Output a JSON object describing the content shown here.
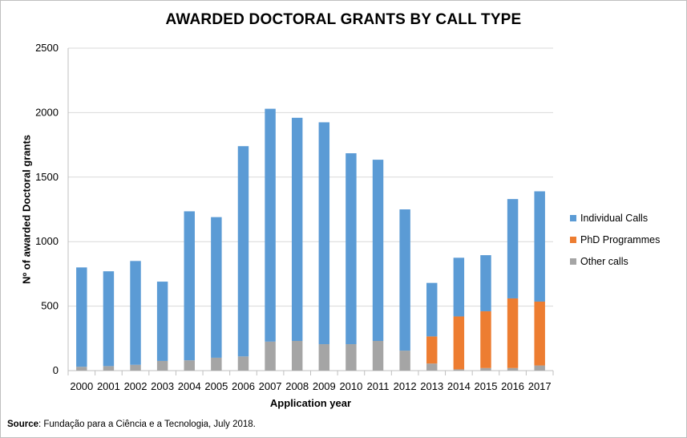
{
  "title": "AWARDED DOCTORAL GRANTS BY CALL TYPE",
  "source": {
    "label": "Source",
    "text": ": Fundação para a Ciência e a Tecnologia, July 2018."
  },
  "colors": {
    "individual": "#5b9bd5",
    "phd": "#ed7d31",
    "other": "#a5a5a5",
    "grid": "#d9d9d9"
  },
  "chart_data": {
    "type": "bar",
    "stacked": true,
    "title": "AWARDED DOCTORAL GRANTS BY CALL TYPE",
    "xlabel": "Application year",
    "ylabel": "Nº of awarded Doctoral grants",
    "ylim": [
      0,
      2500
    ],
    "yticks": [
      "0",
      "500",
      "1000",
      "1500",
      "2000",
      "2500"
    ],
    "grid": true,
    "legend_position": "right",
    "categories": [
      "2000",
      "2001",
      "2002",
      "2003",
      "2004",
      "2005",
      "2006",
      "2007",
      "2008",
      "2009",
      "2010",
      "2011",
      "2012",
      "2013",
      "2014",
      "2015",
      "2016",
      "2017"
    ],
    "series": [
      {
        "name": "Other calls",
        "color": "#a5a5a5",
        "values": [
          30,
          35,
          45,
          75,
          80,
          100,
          110,
          225,
          230,
          205,
          205,
          230,
          155,
          55,
          10,
          20,
          20,
          40
        ]
      },
      {
        "name": "PhD Programmes",
        "color": "#ed7d31",
        "values": [
          0,
          0,
          0,
          0,
          0,
          0,
          0,
          0,
          0,
          0,
          0,
          0,
          0,
          210,
          410,
          440,
          540,
          495
        ]
      },
      {
        "name": "Individual Calls",
        "color": "#5b9bd5",
        "values": [
          770,
          735,
          805,
          615,
          1155,
          1090,
          1630,
          1805,
          1730,
          1720,
          1480,
          1405,
          1095,
          415,
          455,
          435,
          770,
          855
        ]
      }
    ],
    "legend": [
      "Individual Calls",
      "PhD Programmes",
      "Other calls"
    ]
  }
}
